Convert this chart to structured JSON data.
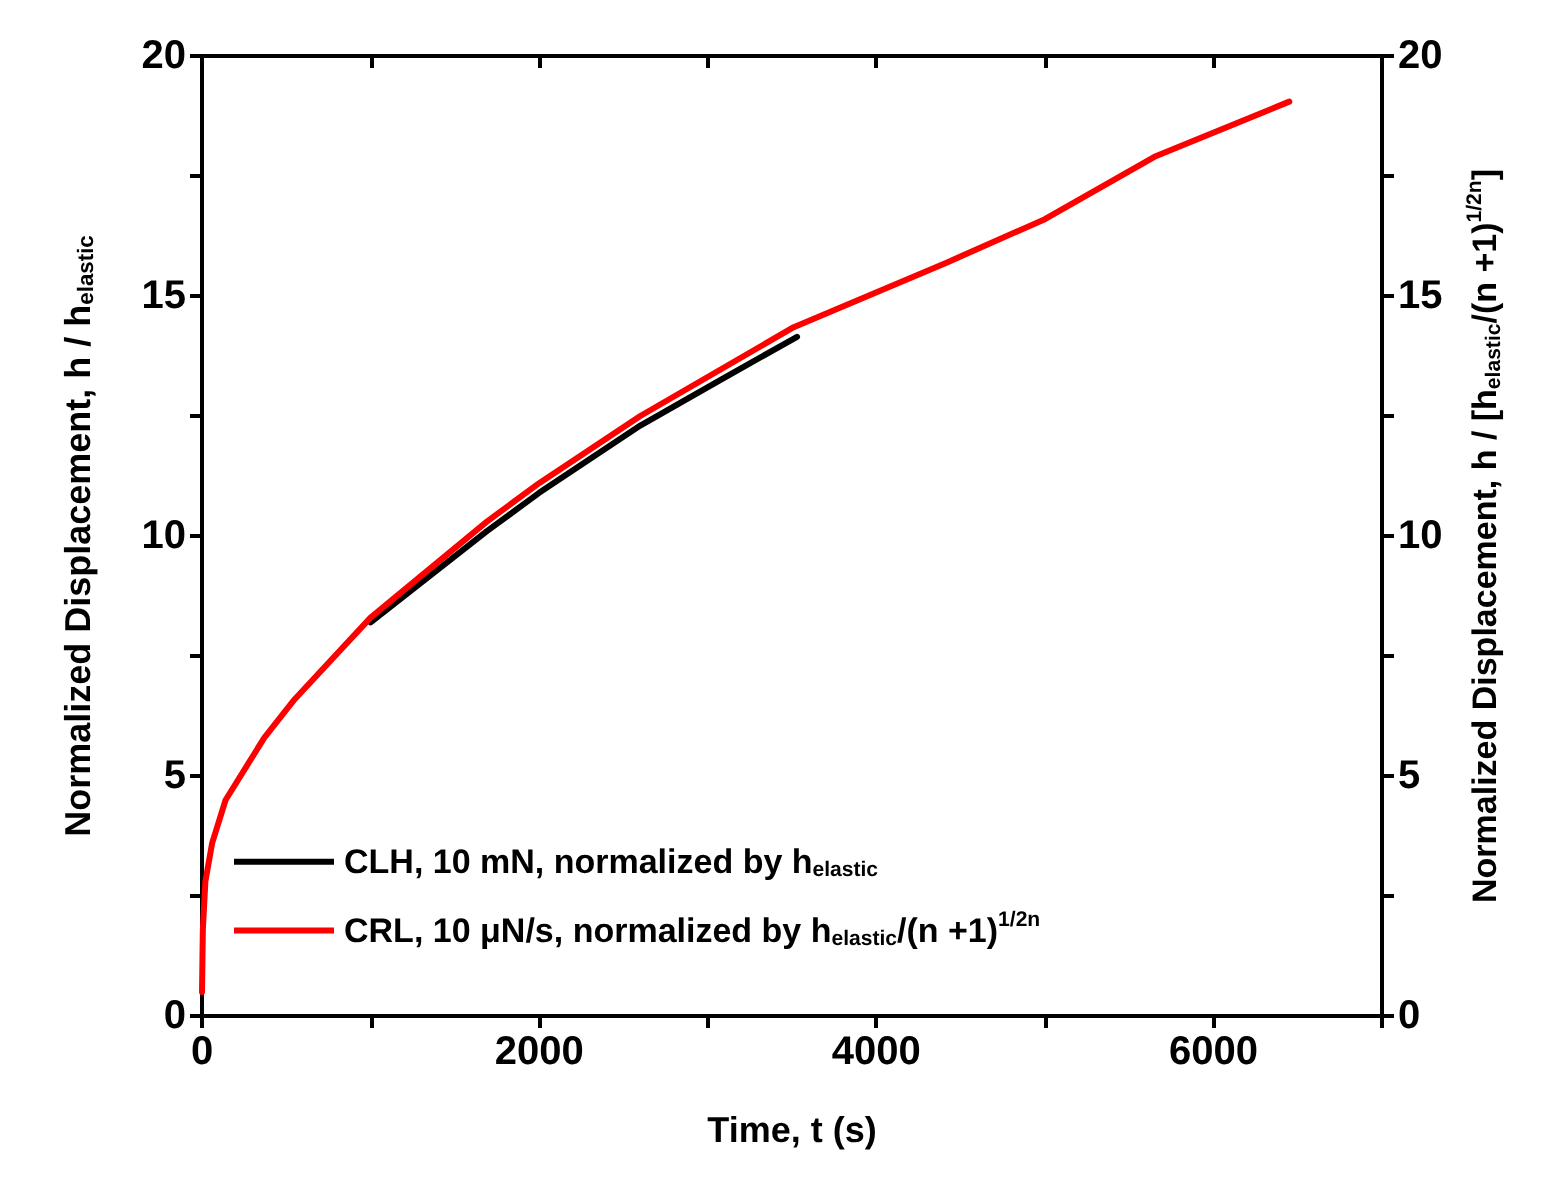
{
  "chart_data": {
    "type": "line",
    "xlabel": "Time, t (s)",
    "ylabel": "Normalized Displacement, h / h$_{elastic}$",
    "y2label": "Normalized Displacement, h / [h$_{elastic}$/(n +1)$^{1/2n}$]",
    "xlim": [
      0,
      7000
    ],
    "xticks": [
      0,
      {
        "value": 1000,
        "label": null
      },
      2000,
      {
        "value": 3000,
        "label": null
      },
      4000,
      {
        "value": 5000,
        "label": null
      },
      6000,
      {
        "value": 7000,
        "label": null
      }
    ],
    "ylim": [
      0,
      20
    ],
    "yticks": [
      0,
      {
        "value": 2.5,
        "label": null
      },
      5,
      {
        "value": 7.5,
        "label": null
      },
      10,
      {
        "value": 12.5,
        "label": null
      },
      15,
      {
        "value": 17.5,
        "label": null
      },
      20
    ],
    "y2lim": [
      0,
      20
    ],
    "y2ticks": [
      0,
      {
        "value": 2.5,
        "label": null
      },
      5,
      {
        "value": 7.5,
        "label": null
      },
      10,
      {
        "value": 12.5,
        "label": null
      },
      15,
      {
        "value": 17.5,
        "label": null
      },
      20
    ],
    "grid": false,
    "legend": "bottom left",
    "marker": "none",
    "line_style": "solid",
    "series": [
      {
        "name": "CLH, 10 mN, normalized by h$_{elastic}$",
        "color": "#000000",
        "x": [
          1000,
          1690,
          2000,
          2600,
          3100,
          3530
        ],
        "values": [
          8.2,
          10.1,
          10.9,
          12.3,
          13.3,
          14.15
        ]
      },
      {
        "name": "CRL, 10 μN/s, normalized by h$_{elastic}$/(n +1)$^{1/2n}$",
        "color": "#ff0000",
        "x": [
          0,
          5,
          20,
          60,
          140,
          370,
          550,
          1000,
          1690,
          2000,
          2600,
          3510,
          4420,
          5000,
          5650,
          6450
        ],
        "values": [
          0.5,
          1.8,
          2.8,
          3.6,
          4.5,
          5.8,
          6.6,
          8.3,
          10.3,
          11.1,
          12.5,
          14.35,
          15.7,
          16.6,
          17.9,
          19.05
        ]
      }
    ]
  }
}
